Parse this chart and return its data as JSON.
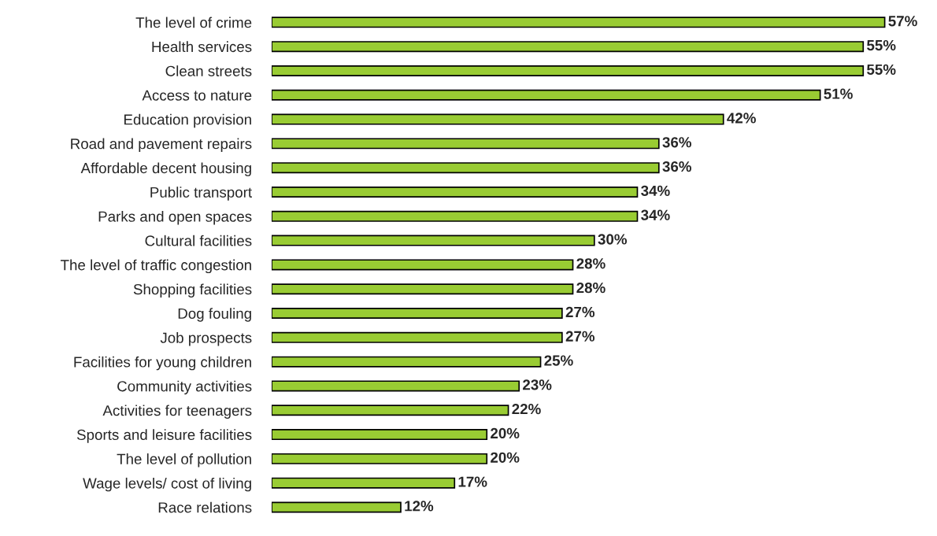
{
  "chart_data": {
    "type": "bar",
    "orientation": "horizontal",
    "categories": [
      "The level of crime",
      "Health services",
      "Clean streets",
      "Access to nature",
      "Education provision",
      "Road and pavement repairs",
      "Affordable decent housing",
      "Public transport",
      "Parks and open spaces",
      "Cultural facilities",
      "The level of traffic congestion",
      "Shopping facilities",
      "Dog fouling",
      "Job prospects",
      "Facilities for young children",
      "Community activities",
      "Activities for teenagers",
      "Sports and leisure facilities",
      "The level of pollution",
      "Wage levels/ cost of living",
      "Race relations"
    ],
    "values": [
      57,
      55,
      55,
      51,
      42,
      36,
      36,
      34,
      34,
      30,
      28,
      28,
      27,
      27,
      25,
      23,
      22,
      20,
      20,
      17,
      12
    ],
    "value_labels": [
      "57%",
      "55%",
      "55%",
      "51%",
      "42%",
      "36%",
      "36%",
      "34%",
      "34%",
      "30%",
      "28%",
      "28%",
      "27%",
      "27%",
      "25%",
      "23%",
      "22%",
      "20%",
      "20%",
      "17%",
      "12%"
    ],
    "color": "#99cc33",
    "tick_labels": "y",
    "grid": false,
    "legend": false
  }
}
